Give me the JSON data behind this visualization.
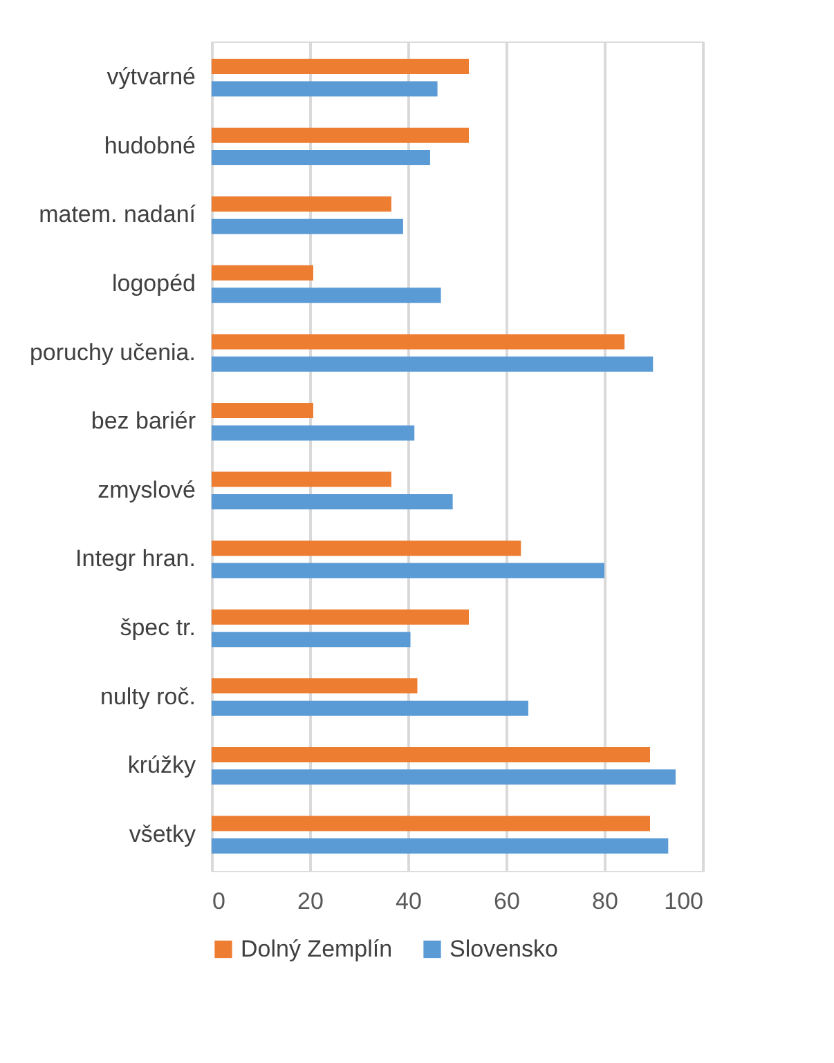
{
  "chart_data": {
    "type": "bar",
    "orientation": "horizontal",
    "categories": [
      "výtvarné",
      "hudobné",
      "matem. nadaní",
      "logopéd",
      "poruchy učenia.",
      "bez bariér",
      "zmyslové",
      "Integr hran.",
      "špec tr.",
      "nulty roč.",
      "krúžky",
      "všetky"
    ],
    "series": [
      {
        "name": "Dolný Zemplín",
        "color": "#ed7d31",
        "values": [
          52.4,
          52.4,
          36.6,
          20.7,
          84.1,
          20.7,
          36.6,
          63.0,
          52.4,
          41.9,
          89.3,
          89.3
        ]
      },
      {
        "name": "Slovensko",
        "color": "#5b9bd5",
        "values": [
          46.0,
          44.5,
          39.0,
          46.7,
          89.9,
          41.3,
          49.1,
          80.0,
          40.5,
          64.5,
          94.5,
          93.0
        ]
      }
    ],
    "xlim": [
      0,
      100
    ],
    "xticks": [
      0,
      20,
      40,
      60,
      80,
      100
    ],
    "grid": "x",
    "legend": "bottom"
  }
}
